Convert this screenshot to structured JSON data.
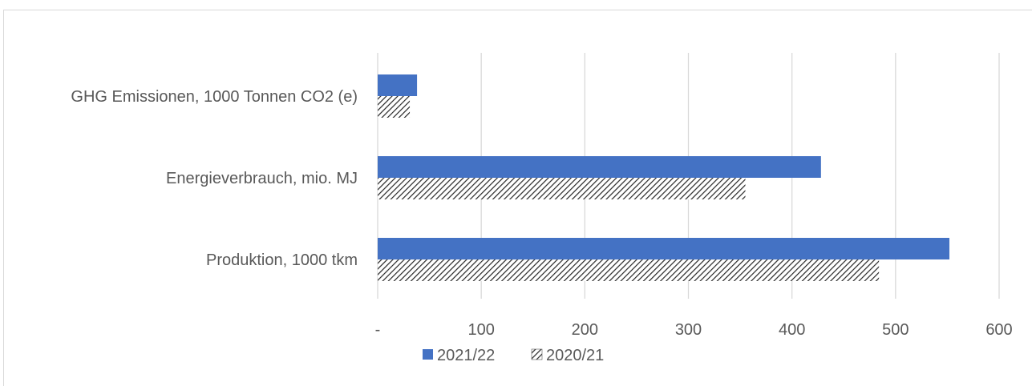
{
  "chart_data": {
    "type": "bar",
    "orientation": "horizontal",
    "categories": [
      "GHG Emissionen, 1000 Tonnen CO2 (e)",
      "Energieverbrauch, mio. MJ",
      "Produktion, 1000 tkm"
    ],
    "series": [
      {
        "name": "2021/22",
        "values": [
          38,
          428,
          552
        ],
        "color": "#4472c4",
        "fill": "solid"
      },
      {
        "name": "2020/21",
        "values": [
          31,
          355,
          484
        ],
        "color": "#262626",
        "fill": "diagonal-hatch"
      }
    ],
    "xlim": [
      0,
      600
    ],
    "x_ticks": [
      0,
      100,
      200,
      300,
      400,
      500,
      600
    ],
    "x_tick_labels": [
      "-",
      "100",
      "200",
      "300",
      "400",
      "500",
      "600"
    ],
    "grid": "vertical",
    "legend_position": "bottom-left",
    "title": "",
    "xlabel": "",
    "ylabel": ""
  }
}
